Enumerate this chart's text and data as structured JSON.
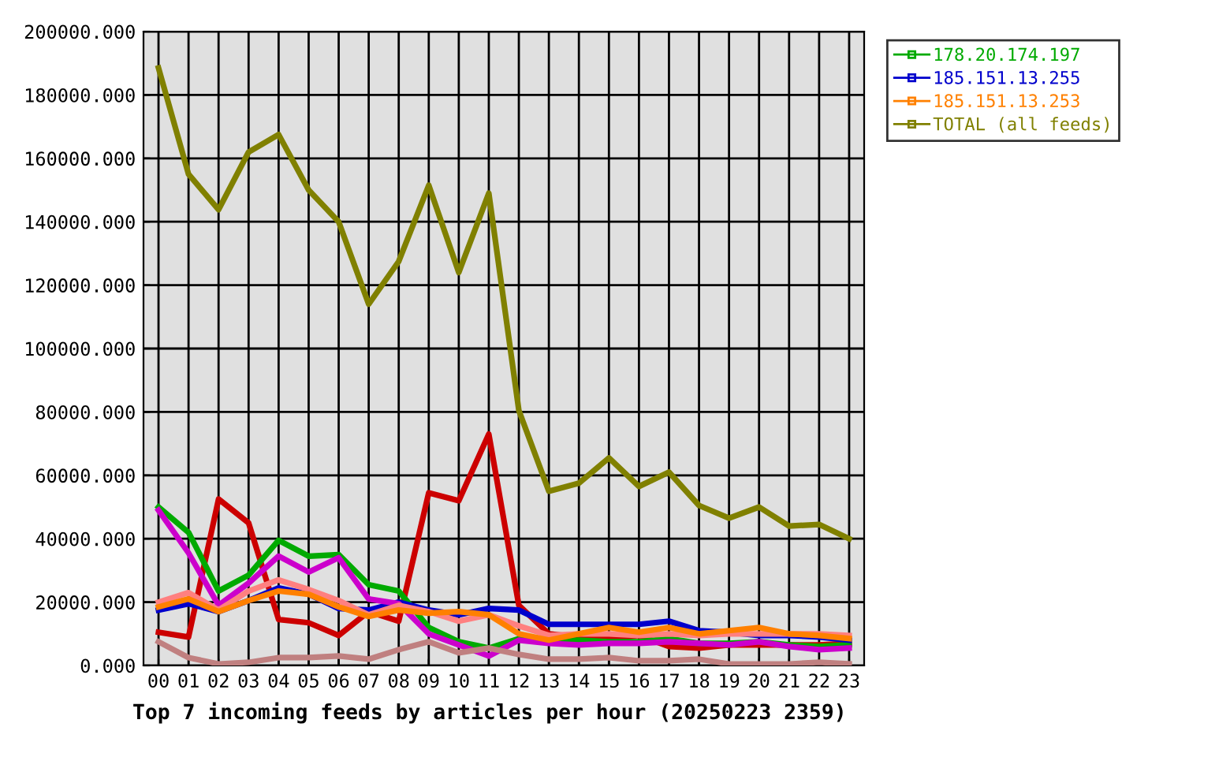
{
  "chart_data": {
    "type": "line",
    "title": "Top 7 incoming feeds by articles per hour (20250223 2359)",
    "categories": [
      "00",
      "01",
      "02",
      "03",
      "04",
      "05",
      "06",
      "07",
      "08",
      "09",
      "10",
      "11",
      "12",
      "13",
      "14",
      "15",
      "16",
      "17",
      "18",
      "19",
      "20",
      "21",
      "22",
      "23"
    ],
    "ylim": [
      0,
      200000
    ],
    "yticks": [
      {
        "value": 0,
        "label": "0.000"
      },
      {
        "value": 20000,
        "label": "20000.000"
      },
      {
        "value": 40000,
        "label": "40000.000"
      },
      {
        "value": 60000,
        "label": "60000.000"
      },
      {
        "value": 80000,
        "label": "80000.000"
      },
      {
        "value": 100000,
        "label": "100000.000"
      },
      {
        "value": 120000,
        "label": "120000.000"
      },
      {
        "value": 140000,
        "label": "140000.000"
      },
      {
        "value": 160000,
        "label": "160000.000"
      },
      {
        "value": 180000,
        "label": "180000.000"
      },
      {
        "value": 200000,
        "label": "200000.000"
      }
    ],
    "grid": true,
    "legend": "top right",
    "series": [
      {
        "color": "#cc0000",
        "values": [
          10500,
          9000,
          52500,
          45000,
          14500,
          13500,
          9500,
          17000,
          14000,
          54500,
          52000,
          73000,
          19000,
          10000,
          9000,
          8500,
          9500,
          6000,
          5500,
          6500,
          6500,
          6500,
          6500,
          7000
        ]
      },
      {
        "name": "178.20.174.197",
        "color": "#00aa00",
        "values": [
          50000,
          42000,
          23500,
          28500,
          39500,
          34500,
          35000,
          25500,
          23500,
          12000,
          7500,
          5500,
          8500,
          8000,
          8000,
          7500,
          7500,
          8500,
          7000,
          7000,
          7500,
          6500,
          6000,
          6500
        ]
      },
      {
        "name": "185.151.13.255",
        "color": "#0000cc",
        "values": [
          17500,
          19500,
          17000,
          20500,
          24500,
          22500,
          18000,
          17500,
          20000,
          17500,
          16000,
          18000,
          17500,
          13000,
          13000,
          13000,
          13000,
          14000,
          11000,
          10500,
          9500,
          9500,
          9000,
          8000
        ]
      },
      {
        "color": "#cc00cc",
        "values": [
          49000,
          35500,
          19000,
          26000,
          34500,
          29500,
          34000,
          21000,
          19500,
          10000,
          6500,
          3000,
          8000,
          7000,
          6500,
          7000,
          7000,
          7500,
          7000,
          6500,
          7500,
          6000,
          5000,
          5500
        ]
      },
      {
        "color": "#ff8080",
        "values": [
          20000,
          23000,
          17500,
          23500,
          27000,
          24000,
          20500,
          16000,
          19000,
          17000,
          14000,
          16000,
          12500,
          9500,
          10000,
          10000,
          9500,
          10000,
          9500,
          10000,
          10000,
          10000,
          10000,
          9500
        ]
      },
      {
        "name": "185.151.13.253",
        "color": "#ff8000",
        "values": [
          18500,
          21000,
          17000,
          20500,
          23500,
          22500,
          18500,
          15500,
          17500,
          16500,
          17000,
          16000,
          10000,
          8000,
          10000,
          12000,
          10500,
          12000,
          10000,
          11000,
          12000,
          10000,
          9500,
          8500
        ]
      },
      {
        "color": "#c08080",
        "values": [
          7500,
          2500,
          500,
          1000,
          2500,
          2500,
          3000,
          2000,
          5000,
          7500,
          4000,
          5500,
          3500,
          2000,
          2000,
          2500,
          1500,
          1500,
          2000,
          500,
          500,
          500,
          1000,
          500
        ]
      },
      {
        "name": "TOTAL (all feeds)",
        "color": "#808000",
        "values": [
          188500,
          155000,
          143800,
          162000,
          167500,
          150000,
          140000,
          114000,
          127500,
          151500,
          124000,
          149000,
          80500,
          55000,
          57500,
          65500,
          56500,
          61000,
          50500,
          46500,
          50000,
          44000,
          44500,
          40000
        ]
      }
    ]
  }
}
